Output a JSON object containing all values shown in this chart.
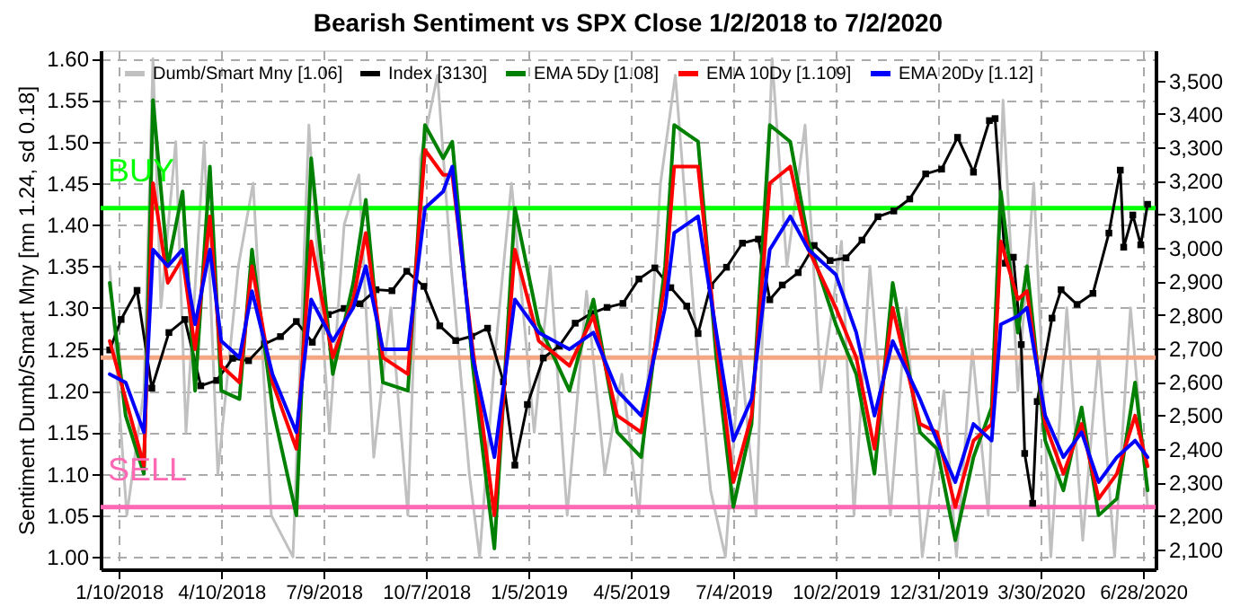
{
  "chart_data": {
    "type": "line",
    "title": "Bearish Sentiment vs SPX Close 1/2/2018 to 7/2/2020",
    "ylabel": "Sentiment Dumb/Smart Mny [mn 1.24, sd 0.18]",
    "xlim": [
      "2017-12-25",
      "2020-07-09"
    ],
    "xticks": [
      {
        "value": "2018-01-10",
        "label": "1/10/2018"
      },
      {
        "value": "2018-04-10",
        "label": "4/10/2018"
      },
      {
        "value": "2018-07-09",
        "label": "7/9/2018"
      },
      {
        "value": "2018-10-07",
        "label": "10/7/2018"
      },
      {
        "value": "2019-01-05",
        "label": "1/5/2019"
      },
      {
        "value": "2019-04-05",
        "label": "4/5/2019"
      },
      {
        "value": "2019-07-04",
        "label": "7/4/2019"
      },
      {
        "value": "2019-10-02",
        "label": "10/2/2019"
      },
      {
        "value": "2019-12-31",
        "label": "12/31/2019"
      },
      {
        "value": "2020-03-30",
        "label": "3/30/2020"
      },
      {
        "value": "2020-06-28",
        "label": "6/28/2020"
      }
    ],
    "ylim": [
      0.985,
      1.61
    ],
    "yticks": [
      {
        "value": 1.0,
        "label": "1.00"
      },
      {
        "value": 1.05,
        "label": "1.05"
      },
      {
        "value": 1.1,
        "label": "1.10"
      },
      {
        "value": 1.15,
        "label": "1.15"
      },
      {
        "value": 1.2,
        "label": "1.20"
      },
      {
        "value": 1.25,
        "label": "1.25"
      },
      {
        "value": 1.3,
        "label": "1.30"
      },
      {
        "value": 1.35,
        "label": "1.35"
      },
      {
        "value": 1.4,
        "label": "1.40"
      },
      {
        "value": 1.45,
        "label": "1.45"
      },
      {
        "value": 1.5,
        "label": "1.50"
      },
      {
        "value": 1.55,
        "label": "1.55"
      },
      {
        "value": 1.6,
        "label": "1.60"
      }
    ],
    "y2lim": [
      2040,
      3590
    ],
    "y2ticks": [
      {
        "value": 2100,
        "label": "2,100"
      },
      {
        "value": 2200,
        "label": "2,200"
      },
      {
        "value": 2300,
        "label": "2,300"
      },
      {
        "value": 2400,
        "label": "2,400"
      },
      {
        "value": 2500,
        "label": "2,500"
      },
      {
        "value": 2600,
        "label": "2,600"
      },
      {
        "value": 2700,
        "label": "2,700"
      },
      {
        "value": 2800,
        "label": "2,800"
      },
      {
        "value": 2900,
        "label": "2,900"
      },
      {
        "value": 3000,
        "label": "3,000"
      },
      {
        "value": 3100,
        "label": "3,100"
      },
      {
        "value": 3200,
        "label": "3,200"
      },
      {
        "value": 3300,
        "label": "3,300"
      },
      {
        "value": 3400,
        "label": "3,400"
      },
      {
        "value": 3500,
        "label": "3,500"
      }
    ],
    "grid": true,
    "legend": "top",
    "ref_lines": [
      {
        "axis": "y",
        "value": 1.42,
        "label": "BUY",
        "color": "#00ff00"
      },
      {
        "axis": "y",
        "value": 1.24,
        "color": "#f4a582"
      },
      {
        "axis": "y",
        "value": 1.06,
        "label": "SELL",
        "color": "#ff69b4"
      }
    ],
    "series": [
      {
        "name": "Dumb/Smart Mny [1.06]",
        "color": "#c0c0c0",
        "marker": "none",
        "x": [
          "2018-01-02",
          "2018-01-17",
          "2018-02-01",
          "2018-02-09",
          "2018-02-16",
          "2018-03-01",
          "2018-03-10",
          "2018-03-26",
          "2018-04-07",
          "2018-04-25",
          "2018-05-08",
          "2018-05-24",
          "2018-06-12",
          "2018-06-26",
          "2018-07-14",
          "2018-07-27",
          "2018-08-09",
          "2018-08-22",
          "2018-09-06",
          "2018-09-21",
          "2018-10-02",
          "2018-10-17",
          "2018-10-29",
          "2018-11-14",
          "2018-11-23",
          "2018-12-07",
          "2018-12-21",
          "2019-01-10",
          "2019-01-24",
          "2019-02-08",
          "2019-02-25",
          "2019-03-13",
          "2019-03-28",
          "2019-04-12",
          "2019-05-01",
          "2019-05-14",
          "2019-05-30",
          "2019-06-14",
          "2019-06-27",
          "2019-07-10",
          "2019-07-24",
          "2019-08-07",
          "2019-08-20",
          "2019-09-05",
          "2019-09-19",
          "2019-10-07",
          "2019-10-18",
          "2019-11-01",
          "2019-11-19",
          "2019-12-03",
          "2019-12-17",
          "2020-01-05",
          "2020-01-16",
          "2020-01-30",
          "2020-02-13",
          "2020-02-26",
          "2020-03-10",
          "2020-03-24",
          "2020-04-08",
          "2020-04-22",
          "2020-05-06",
          "2020-05-20",
          "2020-06-03",
          "2020-06-17",
          "2020-07-02"
        ],
        "values": [
          1.35,
          1.05,
          1.2,
          1.6,
          1.3,
          1.5,
          1.15,
          1.5,
          1.1,
          1.35,
          1.45,
          1.05,
          1.0,
          1.52,
          1.15,
          1.4,
          1.46,
          1.12,
          1.3,
          1.05,
          1.48,
          1.58,
          1.35,
          1.1,
          1.0,
          1.25,
          1.45,
          1.15,
          1.35,
          1.05,
          1.32,
          1.1,
          1.22,
          1.05,
          1.45,
          1.58,
          1.3,
          1.08,
          1.0,
          1.25,
          1.05,
          1.6,
          1.35,
          1.52,
          1.2,
          1.38,
          1.05,
          1.35,
          1.05,
          1.3,
          1.0,
          1.2,
          1.0,
          1.25,
          1.05,
          1.55,
          1.2,
          1.45,
          1.0,
          1.3,
          1.02,
          1.25,
          1.0,
          1.3,
          1.06
        ]
      },
      {
        "name": "Index [3130]",
        "color": "#000000",
        "axis": "y2",
        "marker": "square",
        "x": [
          "2018-01-02",
          "2018-01-12",
          "2018-01-26",
          "2018-02-08",
          "2018-02-23",
          "2018-03-09",
          "2018-03-23",
          "2018-04-06",
          "2018-04-20",
          "2018-05-04",
          "2018-05-18",
          "2018-06-01",
          "2018-06-15",
          "2018-06-29",
          "2018-07-13",
          "2018-07-27",
          "2018-08-10",
          "2018-08-24",
          "2018-09-07",
          "2018-09-20",
          "2018-10-05",
          "2018-10-19",
          "2018-11-02",
          "2018-11-16",
          "2018-11-30",
          "2018-12-14",
          "2018-12-24",
          "2019-01-04",
          "2019-01-18",
          "2019-02-01",
          "2019-02-15",
          "2019-03-01",
          "2019-03-15",
          "2019-03-29",
          "2019-04-12",
          "2019-04-26",
          "2019-05-10",
          "2019-05-24",
          "2019-06-03",
          "2019-06-14",
          "2019-06-28",
          "2019-07-12",
          "2019-07-26",
          "2019-08-05",
          "2019-08-16",
          "2019-08-30",
          "2019-09-13",
          "2019-09-27",
          "2019-10-11",
          "2019-10-25",
          "2019-11-08",
          "2019-11-22",
          "2019-12-06",
          "2019-12-20",
          "2020-01-03",
          "2020-01-17",
          "2020-01-31",
          "2020-02-14",
          "2020-02-19",
          "2020-02-28",
          "2020-03-06",
          "2020-03-13",
          "2020-03-16",
          "2020-03-23",
          "2020-03-27",
          "2020-04-09",
          "2020-04-17",
          "2020-05-01",
          "2020-05-15",
          "2020-05-29",
          "2020-06-08",
          "2020-06-11",
          "2020-06-19",
          "2020-06-26",
          "2020-07-02"
        ],
        "values": [
          2695,
          2786,
          2873,
          2581,
          2747,
          2786,
          2588,
          2604,
          2670,
          2663,
          2713,
          2735,
          2780,
          2718,
          2801,
          2819,
          2833,
          2875,
          2872,
          2930,
          2885,
          2767,
          2723,
          2736,
          2760,
          2600,
          2351,
          2532,
          2671,
          2707,
          2775,
          2804,
          2822,
          2834,
          2907,
          2940,
          2881,
          2826,
          2744,
          2887,
          2942,
          3014,
          3026,
          2845,
          2889,
          2926,
          3007,
          2962,
          2970,
          3023,
          3093,
          3110,
          3146,
          3221,
          3235,
          3330,
          3226,
          3380,
          3386,
          2954,
          2972,
          2711,
          2386,
          2237,
          2541,
          2790,
          2875,
          2831,
          2864,
          3044,
          3232,
          3002,
          3098,
          3009,
          3130
        ]
      },
      {
        "name": "EMA 5Dy [1.08]",
        "color": "#008000",
        "marker": "none",
        "x": [
          "2018-01-02",
          "2018-01-16",
          "2018-02-01",
          "2018-02-09",
          "2018-02-22",
          "2018-03-07",
          "2018-03-18",
          "2018-03-31",
          "2018-04-10",
          "2018-04-26",
          "2018-05-07",
          "2018-05-25",
          "2018-06-15",
          "2018-06-28",
          "2018-07-17",
          "2018-08-04",
          "2018-08-15",
          "2018-08-30",
          "2018-09-21",
          "2018-10-06",
          "2018-10-22",
          "2018-10-30",
          "2018-11-17",
          "2018-12-06",
          "2018-12-24",
          "2019-01-14",
          "2019-02-10",
          "2019-03-03",
          "2019-03-24",
          "2019-04-14",
          "2019-05-05",
          "2019-05-13",
          "2019-06-03",
          "2019-06-19",
          "2019-07-04",
          "2019-07-20",
          "2019-08-05",
          "2019-08-23",
          "2019-09-08",
          "2019-10-02",
          "2019-10-20",
          "2019-11-05",
          "2019-11-21",
          "2019-12-15",
          "2019-12-30",
          "2020-01-15",
          "2020-01-31",
          "2020-02-16",
          "2020-02-24",
          "2020-03-10",
          "2020-03-18",
          "2020-04-03",
          "2020-04-19",
          "2020-05-05",
          "2020-05-20",
          "2020-06-05",
          "2020-06-21",
          "2020-07-02"
        ],
        "values": [
          1.33,
          1.17,
          1.1,
          1.55,
          1.35,
          1.44,
          1.2,
          1.47,
          1.2,
          1.19,
          1.37,
          1.18,
          1.05,
          1.48,
          1.22,
          1.33,
          1.43,
          1.21,
          1.2,
          1.52,
          1.48,
          1.5,
          1.23,
          1.01,
          1.42,
          1.28,
          1.2,
          1.31,
          1.15,
          1.12,
          1.35,
          1.52,
          1.5,
          1.24,
          1.06,
          1.16,
          1.52,
          1.5,
          1.38,
          1.28,
          1.22,
          1.1,
          1.33,
          1.15,
          1.13,
          1.02,
          1.12,
          1.18,
          1.44,
          1.27,
          1.35,
          1.14,
          1.08,
          1.18,
          1.05,
          1.07,
          1.21,
          1.08
        ]
      },
      {
        "name": "EMA 10Dy [1.109]",
        "color": "#ff0000",
        "marker": "none",
        "x": [
          "2018-01-02",
          "2018-01-16",
          "2018-02-01",
          "2018-02-09",
          "2018-02-22",
          "2018-03-07",
          "2018-03-18",
          "2018-03-31",
          "2018-04-10",
          "2018-04-26",
          "2018-05-07",
          "2018-05-25",
          "2018-06-15",
          "2018-06-28",
          "2018-07-17",
          "2018-08-04",
          "2018-08-15",
          "2018-08-30",
          "2018-09-21",
          "2018-10-06",
          "2018-10-22",
          "2018-10-30",
          "2018-11-17",
          "2018-12-06",
          "2018-12-24",
          "2019-01-14",
          "2019-02-10",
          "2019-03-03",
          "2019-03-24",
          "2019-04-14",
          "2019-05-05",
          "2019-05-13",
          "2019-06-03",
          "2019-06-19",
          "2019-07-04",
          "2019-07-20",
          "2019-08-05",
          "2019-08-23",
          "2019-09-08",
          "2019-10-02",
          "2019-10-20",
          "2019-11-05",
          "2019-11-21",
          "2019-12-15",
          "2019-12-30",
          "2020-01-15",
          "2020-01-31",
          "2020-02-16",
          "2020-02-24",
          "2020-03-10",
          "2020-03-18",
          "2020-04-03",
          "2020-04-19",
          "2020-05-05",
          "2020-05-20",
          "2020-06-05",
          "2020-06-21",
          "2020-07-02"
        ],
        "values": [
          1.26,
          1.19,
          1.11,
          1.45,
          1.33,
          1.36,
          1.25,
          1.41,
          1.23,
          1.21,
          1.35,
          1.21,
          1.13,
          1.38,
          1.24,
          1.31,
          1.39,
          1.24,
          1.22,
          1.49,
          1.46,
          1.46,
          1.25,
          1.05,
          1.37,
          1.26,
          1.23,
          1.29,
          1.17,
          1.15,
          1.33,
          1.47,
          1.47,
          1.26,
          1.09,
          1.17,
          1.45,
          1.47,
          1.37,
          1.3,
          1.24,
          1.13,
          1.3,
          1.16,
          1.15,
          1.06,
          1.14,
          1.16,
          1.38,
          1.31,
          1.32,
          1.16,
          1.1,
          1.16,
          1.07,
          1.1,
          1.17,
          1.109
        ]
      },
      {
        "name": "EMA 20Dy [1.12]",
        "color": "#0000ff",
        "marker": "none",
        "x": [
          "2018-01-02",
          "2018-01-16",
          "2018-02-01",
          "2018-02-09",
          "2018-02-22",
          "2018-03-07",
          "2018-03-18",
          "2018-03-31",
          "2018-04-10",
          "2018-04-26",
          "2018-05-07",
          "2018-05-25",
          "2018-06-15",
          "2018-06-28",
          "2018-07-17",
          "2018-08-04",
          "2018-08-15",
          "2018-08-30",
          "2018-09-21",
          "2018-10-06",
          "2018-10-22",
          "2018-10-30",
          "2018-11-17",
          "2018-12-06",
          "2018-12-24",
          "2019-01-14",
          "2019-02-10",
          "2019-03-03",
          "2019-03-24",
          "2019-04-14",
          "2019-05-05",
          "2019-05-13",
          "2019-06-03",
          "2019-06-19",
          "2019-07-04",
          "2019-07-20",
          "2019-08-05",
          "2019-08-23",
          "2019-09-08",
          "2019-10-02",
          "2019-10-20",
          "2019-11-05",
          "2019-11-21",
          "2019-12-15",
          "2019-12-30",
          "2020-01-15",
          "2020-01-31",
          "2020-02-16",
          "2020-02-24",
          "2020-03-10",
          "2020-03-18",
          "2020-04-03",
          "2020-04-19",
          "2020-05-05",
          "2020-05-20",
          "2020-06-05",
          "2020-06-21",
          "2020-07-02"
        ],
        "values": [
          1.22,
          1.21,
          1.15,
          1.37,
          1.35,
          1.37,
          1.28,
          1.37,
          1.26,
          1.24,
          1.32,
          1.22,
          1.15,
          1.31,
          1.26,
          1.3,
          1.35,
          1.25,
          1.25,
          1.42,
          1.44,
          1.47,
          1.24,
          1.12,
          1.31,
          1.27,
          1.25,
          1.27,
          1.2,
          1.17,
          1.3,
          1.39,
          1.41,
          1.27,
          1.14,
          1.19,
          1.37,
          1.41,
          1.37,
          1.34,
          1.27,
          1.17,
          1.26,
          1.19,
          1.14,
          1.09,
          1.16,
          1.14,
          1.28,
          1.29,
          1.3,
          1.17,
          1.12,
          1.15,
          1.09,
          1.12,
          1.14,
          1.12
        ]
      }
    ]
  }
}
